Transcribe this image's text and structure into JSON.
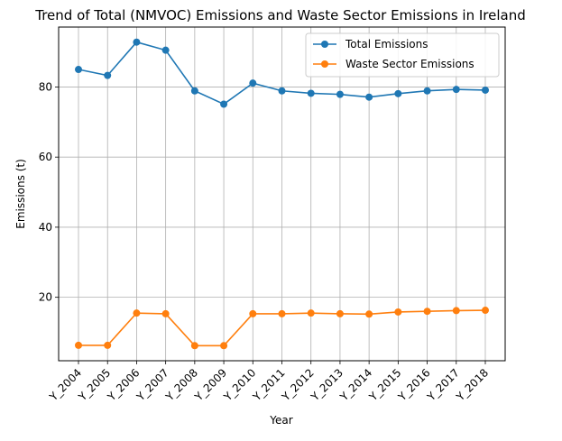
{
  "chart_data": {
    "type": "line",
    "title": "Trend of Total (NMVOC) Emissions and Waste Sector Emissions in Ireland",
    "xlabel": "Year",
    "ylabel": "Emissions (t)",
    "categories": [
      "Y_2004",
      "Y_2005",
      "Y_2006",
      "Y_2007",
      "Y_2008",
      "Y_2009",
      "Y_2010",
      "Y_2011",
      "Y_2012",
      "Y_2013",
      "Y_2014",
      "Y_2015",
      "Y_2016",
      "Y_2017",
      "Y_2018"
    ],
    "series": [
      {
        "name": "Total Emissions",
        "color": "#1f77b4",
        "values": [
          85.0,
          83.3,
          92.8,
          90.5,
          78.9,
          75.1,
          81.1,
          78.9,
          78.2,
          77.9,
          77.1,
          78.1,
          78.9,
          79.3,
          79.1
        ]
      },
      {
        "name": "Waste Sector Emissions",
        "color": "#ff7f0e",
        "values": [
          6.3,
          6.3,
          15.5,
          15.3,
          6.2,
          6.2,
          15.3,
          15.3,
          15.5,
          15.3,
          15.2,
          15.8,
          16.0,
          16.2,
          16.3
        ]
      }
    ],
    "yticks": [
      20,
      40,
      60,
      80
    ],
    "ylim": [
      1.9,
      97.1
    ],
    "grid": true,
    "legend_position": "top-right"
  }
}
